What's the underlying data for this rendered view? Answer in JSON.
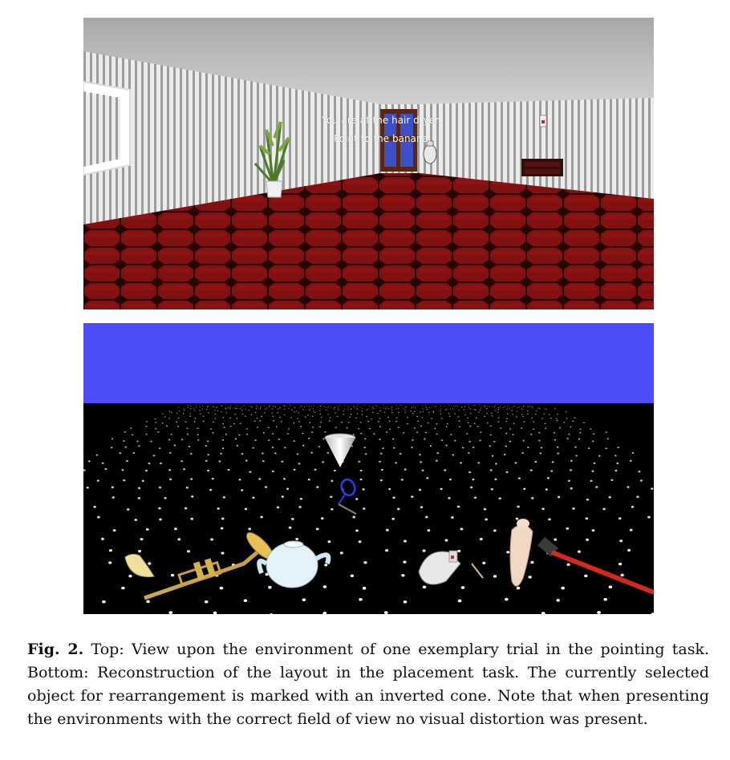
{
  "figure": {
    "top_panel": {
      "hud_line_1": "You are at the hair dryer.",
      "hud_line_2": "Point to the banana."
    },
    "caption": {
      "label": "Fig. 2.",
      "text": "Top: View upon the environment of one exemplary trial in the pointing task. Bottom: Reconstruction of the layout in the placement task. The currently selected object for rearrangement is marked with an inverted cone. Note that when presenting the environments with the correct field of view no visual distortion was present."
    },
    "colors": {
      "ceiling": "#a9a9a9",
      "wall_stripe_light": "#ebebeb",
      "wall_stripe_dark": "#9a9a9a",
      "carpet": "#8c1212",
      "carpet_grout": "#2a0505",
      "door": "#5a2812",
      "sky": "#4c4cf8",
      "ground": "#000000",
      "dot": "#ffffff",
      "racket": "#2a3cf0",
      "hammer_handle": "#d02a1c"
    }
  }
}
